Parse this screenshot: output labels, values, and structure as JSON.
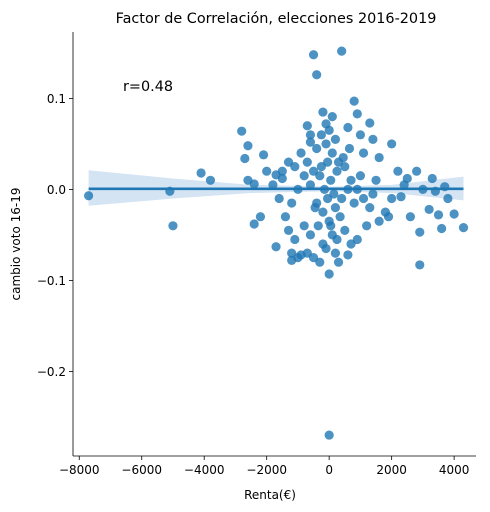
{
  "chart_data": {
    "type": "scatter",
    "title": "Factor de Correlación, elecciones 2016-2019",
    "xlabel": "Renta(€)",
    "ylabel": "cambio voto 16-19",
    "xlim": [
      -8200,
      4700
    ],
    "ylim": [
      -0.293,
      0.173
    ],
    "xticks": [
      -8000,
      -6000,
      -4000,
      -2000,
      0,
      2000,
      4000
    ],
    "xtick_labels": [
      "−8000",
      "−6000",
      "−4000",
      "−2000",
      "0",
      "2000",
      "4000"
    ],
    "yticks": [
      -0.2,
      -0.1,
      0.0,
      0.1
    ],
    "ytick_labels": [
      "−0.2",
      "−0.1",
      "0.0",
      "0.1"
    ],
    "annotation": {
      "text": "r=0.48",
      "x": -6600,
      "y": 0.108
    },
    "grid": false,
    "legend": "none",
    "colors": {
      "points": "#1f77b4",
      "band": "#c6dbef",
      "line": "#1f77b4"
    },
    "regression": {
      "x_range": [
        -7700,
        4300
      ],
      "intercept": 0.0006,
      "slope": 0.0,
      "ci_band": [
        {
          "x": -7700,
          "lo": -0.018,
          "hi": 0.021
        },
        {
          "x": -5000,
          "lo": -0.01,
          "hi": 0.012
        },
        {
          "x": -2500,
          "lo": -0.004,
          "hi": 0.005
        },
        {
          "x": 0,
          "lo": -0.002,
          "hi": 0.003
        },
        {
          "x": 2000,
          "lo": -0.004,
          "hi": 0.005
        },
        {
          "x": 4300,
          "lo": -0.012,
          "hi": 0.014
        }
      ]
    },
    "points": [
      [
        -7700,
        -0.007
      ],
      [
        -5100,
        -0.002
      ],
      [
        -5000,
        -0.04
      ],
      [
        -4100,
        0.018
      ],
      [
        -3800,
        0.01
      ],
      [
        -2800,
        0.064
      ],
      [
        -2600,
        0.048
      ],
      [
        -2700,
        0.034
      ],
      [
        -2400,
        0.006
      ],
      [
        -2100,
        0.038
      ],
      [
        -2000,
        0.02
      ],
      [
        -2600,
        0.01
      ],
      [
        -2200,
        -0.03
      ],
      [
        -2400,
        -0.038
      ],
      [
        -1700,
        -0.063
      ],
      [
        -1500,
        0.02
      ],
      [
        -1300,
        0.03
      ],
      [
        -1200,
        -0.07
      ],
      [
        -1200,
        -0.078
      ],
      [
        -1000,
        -0.075
      ],
      [
        -900,
        -0.072
      ],
      [
        -700,
        0.07
      ],
      [
        -600,
        0.06
      ],
      [
        -500,
        0.148
      ],
      [
        -400,
        0.126
      ],
      [
        -200,
        0.085
      ],
      [
        -100,
        0.072
      ],
      [
        -300,
        -0.08
      ],
      [
        0,
        -0.093
      ],
      [
        300,
        -0.08
      ],
      [
        400,
        0.152
      ],
      [
        600,
        0.068
      ],
      [
        800,
        0.097
      ],
      [
        900,
        0.083
      ],
      [
        1000,
        0.06
      ],
      [
        1100,
        0.04
      ],
      [
        1300,
        0.073
      ],
      [
        1400,
        0.055
      ],
      [
        1600,
        0.035
      ],
      [
        2000,
        0.05
      ],
      [
        2200,
        0.02
      ],
      [
        2400,
        0.005
      ],
      [
        2600,
        -0.03
      ],
      [
        2900,
        -0.047
      ],
      [
        2900,
        -0.083
      ],
      [
        3200,
        -0.022
      ],
      [
        3500,
        -0.028
      ],
      [
        3600,
        -0.043
      ],
      [
        3800,
        -0.01
      ],
      [
        4000,
        -0.027
      ],
      [
        4300,
        -0.042
      ],
      [
        3000,
        0.0
      ],
      [
        3400,
        -0.002
      ],
      [
        2500,
        0.012
      ],
      [
        2000,
        -0.01
      ],
      [
        1800,
        -0.025
      ],
      [
        1500,
        0.01
      ],
      [
        1200,
        -0.04
      ],
      [
        900,
        -0.055
      ],
      [
        700,
        -0.06
      ],
      [
        500,
        -0.045
      ],
      [
        200,
        -0.07
      ],
      [
        -200,
        -0.06
      ],
      [
        -600,
        -0.05
      ],
      [
        -800,
        -0.04
      ],
      [
        -1100,
        -0.055
      ],
      [
        -1400,
        -0.03
      ],
      [
        -1600,
        -0.01
      ],
      [
        -1800,
        0.005
      ],
      [
        -900,
        0.04
      ],
      [
        -700,
        0.03
      ],
      [
        -500,
        0.02
      ],
      [
        -300,
        0.015
      ],
      [
        -100,
        0.05
      ],
      [
        100,
        0.04
      ],
      [
        300,
        0.03
      ],
      [
        500,
        0.025
      ],
      [
        700,
        0.01
      ],
      [
        900,
        0.0
      ],
      [
        1100,
        -0.01
      ],
      [
        1300,
        -0.02
      ],
      [
        -400,
        -0.015
      ],
      [
        -200,
        -0.025
      ],
      [
        0,
        -0.035
      ],
      [
        200,
        -0.02
      ],
      [
        400,
        -0.01
      ],
      [
        600,
        0.0
      ],
      [
        -600,
        0.005
      ],
      [
        -800,
        0.015
      ],
      [
        -1000,
        0.0
      ],
      [
        -1200,
        -0.015
      ],
      [
        -400,
        0.045
      ],
      [
        0,
        0.065
      ],
      [
        200,
        0.055
      ],
      [
        100,
        -0.05
      ],
      [
        -50,
        -0.01
      ],
      [
        50,
        0.01
      ],
      [
        -150,
        0.0
      ],
      [
        150,
        -0.005
      ],
      [
        250,
        0.02
      ],
      [
        -250,
        0.025
      ],
      [
        350,
        -0.03
      ],
      [
        -350,
        -0.04
      ],
      [
        450,
        0.035
      ],
      [
        -450,
        -0.02
      ],
      [
        -50,
        0.03
      ],
      [
        50,
        -0.04
      ],
      [
        -100,
        -0.065
      ],
      [
        100,
        0.08
      ],
      [
        0,
        -0.27
      ],
      [
        3700,
        0.003
      ],
      [
        3300,
        0.012
      ],
      [
        2800,
        0.02
      ],
      [
        1900,
        -0.03
      ],
      [
        1600,
        -0.035
      ],
      [
        -1500,
        0.012
      ],
      [
        -1300,
        -0.045
      ],
      [
        -1100,
        0.025
      ],
      [
        800,
        -0.015
      ],
      [
        1000,
        0.015
      ],
      [
        -700,
        -0.07
      ],
      [
        -500,
        -0.075
      ],
      [
        600,
        -0.072
      ],
      [
        1400,
        -0.005
      ],
      [
        -1700,
        0.016
      ],
      [
        2300,
        -0.008
      ],
      [
        -250,
        0.06
      ],
      [
        250,
        -0.055
      ],
      [
        -600,
        0.052
      ],
      [
        650,
        0.045
      ]
    ]
  }
}
